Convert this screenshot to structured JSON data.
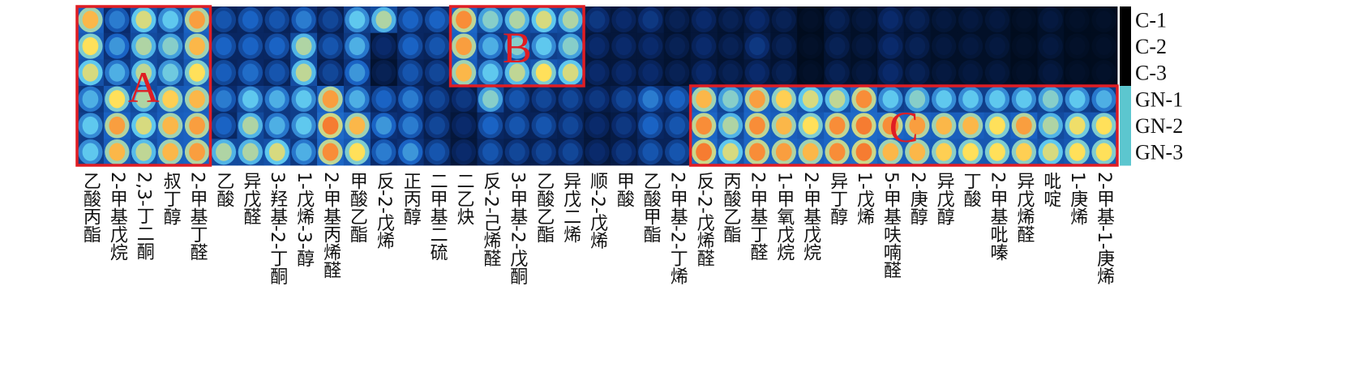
{
  "chart_data": {
    "type": "heatmap",
    "rows": [
      "C-1",
      "C-2",
      "C-3",
      "GN-1",
      "GN-2",
      "GN-3"
    ],
    "row_group_colors": {
      "C": "#000000",
      "GN": "#5cc6cf"
    },
    "columns": [
      "乙酸丙酯",
      "2-甲基戊烷",
      "2,3-丁二酮",
      "叔丁醇",
      "2-甲基丁醛",
      "乙酸",
      "异戊醛",
      "3-羟基-2-丁酮",
      "1-戊烯-3-醇",
      "2-甲基丙烯醛",
      "甲酸乙酯",
      "反-2-戊烯",
      "正丙醇",
      "二甲基二硫",
      "二乙炔",
      "反-2-己烯醛",
      "3-甲基-2-戊酮",
      "乙酸乙酯",
      "异戊二烯",
      "顺-2-戊烯",
      "甲酸",
      "乙酸甲酯",
      "2-甲基-2-丁烯",
      "反-2-戊烯醛",
      "丙酸乙酯",
      "2-甲基丁醛",
      "1-甲氧戊烷",
      "2-甲基戊烷",
      "异丁醇",
      "1-戊烯",
      "5-甲基呋喃醛",
      "2-庚醇",
      "异戊醇",
      "丁酸",
      "2-甲基吡嗪",
      "异戊烯醛",
      "吡啶",
      "1-庚烯",
      "2-甲基-1-庚烯"
    ],
    "values": [
      [
        0.85,
        0.45,
        0.75,
        0.6,
        0.88,
        0.35,
        0.4,
        0.35,
        0.45,
        0.3,
        0.6,
        0.7,
        0.4,
        0.4,
        0.9,
        0.65,
        0.7,
        0.75,
        0.7,
        0.25,
        0.2,
        0.25,
        0.15,
        0.2,
        0.15,
        0.2,
        0.15,
        0.05,
        0.15,
        0.1,
        0.2,
        0.15,
        0.1,
        0.1,
        0.1,
        0.05,
        0.1,
        0.05,
        0.05
      ],
      [
        0.8,
        0.5,
        0.7,
        0.65,
        0.85,
        0.4,
        0.4,
        0.4,
        0.7,
        0.35,
        0.55,
        0.2,
        0.4,
        0.35,
        0.88,
        0.55,
        0.65,
        0.6,
        0.65,
        0.2,
        0.2,
        0.2,
        0.15,
        0.2,
        0.15,
        0.25,
        0.15,
        0.05,
        0.15,
        0.1,
        0.2,
        0.15,
        0.1,
        0.1,
        0.1,
        0.05,
        0.1,
        0.05,
        0.05
      ],
      [
        0.75,
        0.55,
        0.72,
        0.62,
        0.8,
        0.38,
        0.42,
        0.35,
        0.72,
        0.3,
        0.5,
        0.15,
        0.35,
        0.3,
        0.85,
        0.6,
        0.72,
        0.8,
        0.75,
        0.2,
        0.2,
        0.2,
        0.15,
        0.2,
        0.15,
        0.2,
        0.15,
        0.05,
        0.15,
        0.1,
        0.2,
        0.15,
        0.1,
        0.1,
        0.1,
        0.05,
        0.1,
        0.05,
        0.05
      ],
      [
        0.55,
        0.8,
        0.7,
        0.82,
        0.85,
        0.45,
        0.6,
        0.55,
        0.6,
        0.88,
        0.55,
        0.4,
        0.45,
        0.3,
        0.25,
        0.65,
        0.35,
        0.3,
        0.3,
        0.25,
        0.3,
        0.45,
        0.4,
        0.85,
        0.65,
        0.88,
        0.82,
        0.75,
        0.72,
        0.9,
        0.6,
        0.65,
        0.6,
        0.6,
        0.6,
        0.6,
        0.65,
        0.6,
        0.55
      ],
      [
        0.6,
        0.88,
        0.75,
        0.85,
        0.88,
        0.4,
        0.7,
        0.55,
        0.6,
        0.92,
        0.85,
        0.5,
        0.45,
        0.3,
        0.2,
        0.4,
        0.35,
        0.35,
        0.3,
        0.2,
        0.25,
        0.4,
        0.35,
        0.9,
        0.7,
        0.9,
        0.85,
        0.8,
        0.9,
        0.92,
        0.9,
        0.88,
        0.85,
        0.85,
        0.8,
        0.88,
        0.7,
        0.78,
        0.8
      ],
      [
        0.6,
        0.85,
        0.72,
        0.85,
        0.88,
        0.7,
        0.7,
        0.75,
        0.55,
        0.9,
        0.8,
        0.45,
        0.5,
        0.35,
        0.2,
        0.35,
        0.3,
        0.3,
        0.3,
        0.2,
        0.25,
        0.35,
        0.35,
        0.92,
        0.75,
        0.9,
        0.88,
        0.85,
        0.9,
        0.92,
        0.85,
        0.85,
        0.82,
        0.8,
        0.8,
        0.82,
        0.75,
        0.8,
        0.8
      ]
    ],
    "regions": [
      {
        "label": "A",
        "rows": [
          0,
          5
        ],
        "columns": [
          0,
          4
        ]
      },
      {
        "label": "B",
        "rows": [
          0,
          2
        ],
        "columns": [
          14,
          18
        ]
      },
      {
        "label": "C",
        "rows": [
          3,
          5
        ],
        "columns": [
          23,
          38
        ]
      }
    ],
    "colors": {
      "region_border": "#e01d23",
      "region_label": "#e01d23",
      "scale": [
        "#000814",
        "#0a2a6b",
        "#1a63c4",
        "#5fc8ee",
        "#ffe05a",
        "#f03a16"
      ]
    }
  }
}
